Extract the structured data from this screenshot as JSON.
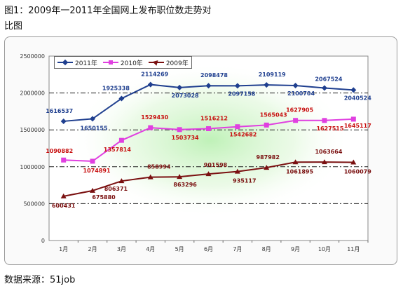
{
  "header": {
    "title_line1": "图1：2009年一2011年全国网上发布职位数走势对",
    "title_line2": "比图"
  },
  "footer": {
    "source": "数据来源：51job"
  },
  "legend": {
    "s2011": "2011年",
    "s2010": "2010年",
    "s2009": "2009年"
  },
  "chart_data": {
    "type": "line",
    "categories": [
      "1月",
      "2月",
      "3月",
      "4月",
      "5月",
      "6月",
      "7月",
      "8月",
      "9月",
      "10月",
      "11月"
    ],
    "y_ticks": [
      "0",
      "500000",
      "1000000",
      "1500000",
      "2000000",
      "2500000"
    ],
    "ylim": [
      0,
      2500000
    ],
    "grid": true,
    "legend_position": "top-left",
    "series": [
      {
        "name": "2011年",
        "color": "#1f3f8f",
        "marker": "diamond",
        "values": [
          1616537,
          1650155,
          1925338,
          2114269,
          2073028,
          2098478,
          2097158,
          2109119,
          2100704,
          2067524,
          2040524
        ]
      },
      {
        "name": "2010年",
        "color": "#e040e0",
        "marker": "square",
        "values": [
          1090882,
          1074891,
          1357814,
          1529430,
          1503734,
          1516212,
          1542682,
          1565043,
          1627905,
          1627515,
          1645117
        ]
      },
      {
        "name": "2009年",
        "color": "#7a1010",
        "marker": "triangle",
        "values": [
          600431,
          675880,
          806371,
          858994,
          863296,
          901598,
          935117,
          987982,
          1061895,
          1063664,
          1060079
        ]
      }
    ],
    "labels": {
      "2011年": [
        "1616537",
        "1650155",
        "1925338",
        "2114269",
        "2073028",
        "2098478",
        "2097158",
        "2109119",
        "2100704",
        "2067524",
        "2040524"
      ],
      "2010年": [
        "1090882",
        "1074891",
        "1357814",
        "1529430",
        "1503734",
        "1516212",
        "1542682",
        "1565043",
        "1627905",
        "1627515",
        "1645117"
      ],
      "2009年": [
        "600431",
        "675880",
        "806371",
        "858994",
        "863296",
        "901598",
        "935117",
        "987982",
        "1061895",
        "1063664",
        "1060079"
      ]
    }
  }
}
